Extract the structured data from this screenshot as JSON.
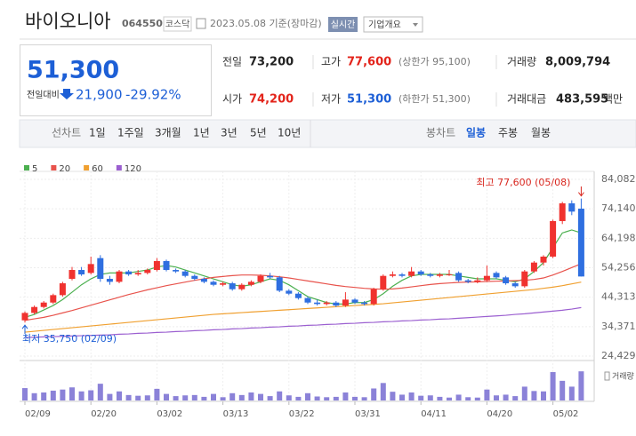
{
  "header": {
    "name": "바이오니아",
    "code": "064550",
    "market": "코스닥",
    "date": "2023.05.08 기준(장마감)",
    "realtime": "실시간",
    "overview": "기업개요"
  },
  "summary": {
    "price": "51,300",
    "change_label": "전일대비",
    "change": "21,900",
    "change_pct": "-29.92%"
  },
  "quotes": {
    "rows": [
      [
        {
          "label": "전일",
          "value": "73,200"
        },
        {
          "label": "고가",
          "value": "77,600",
          "note": "(상한가 95,100)"
        },
        {
          "label": "거래량",
          "value": "8,009,794"
        }
      ],
      [
        {
          "label": "시가",
          "value": "74,200"
        },
        {
          "label": "저가",
          "value": "51,300",
          "note": "(하한가 51,300)"
        },
        {
          "label": "거래대금",
          "value": "483,595",
          "unit": "백만"
        }
      ]
    ]
  },
  "toolbar": {
    "line_label": "선차트",
    "periods": [
      "1일",
      "1주일",
      "3개월",
      "1년",
      "3년",
      "5년",
      "10년"
    ],
    "candle_label": "봉차트",
    "candle_periods": [
      "일봉",
      "주봉",
      "월봉"
    ]
  },
  "chart_data": {
    "type": "candlestick",
    "categories": [
      "02/09",
      null,
      null,
      null,
      null,
      null,
      null,
      "02/20",
      null,
      null,
      null,
      null,
      null,
      null,
      "03/02",
      null,
      null,
      null,
      null,
      null,
      null,
      "03/13",
      null,
      null,
      null,
      null,
      null,
      null,
      "03/22",
      null,
      null,
      null,
      null,
      null,
      null,
      "03/31",
      null,
      null,
      null,
      null,
      null,
      null,
      "04/11",
      null,
      null,
      null,
      null,
      null,
      null,
      "04/20",
      null,
      null,
      null,
      null,
      null,
      null,
      "05/02",
      null,
      null,
      null
    ],
    "open": [
      36500,
      39000,
      41000,
      42500,
      45000,
      50500,
      53500,
      52500,
      57500,
      50500,
      49500,
      53000,
      52000,
      52500,
      53500,
      56500,
      53500,
      53000,
      51500,
      50500,
      49500,
      48500,
      49000,
      47000,
      48500,
      49500,
      51500,
      51000,
      46500,
      45500,
      44000,
      42500,
      42000,
      42500,
      41500,
      43500,
      42500,
      42000,
      47000,
      51500,
      52000,
      51500,
      53000,
      52000,
      51500,
      51800,
      52500,
      50000,
      49500,
      50000,
      52500,
      51000,
      49000,
      48000,
      53000,
      56000,
      58000,
      70000,
      76000,
      74200
    ],
    "high": [
      39500,
      41500,
      43000,
      45500,
      49500,
      54500,
      54500,
      58000,
      58500,
      51500,
      53500,
      53500,
      53500,
      54000,
      57500,
      57000,
      54000,
      53500,
      52000,
      51000,
      50000,
      49500,
      49500,
      49000,
      50000,
      52000,
      52500,
      51500,
      47000,
      46000,
      44500,
      43500,
      43000,
      43000,
      46000,
      44000,
      43000,
      47500,
      52000,
      53000,
      52500,
      54500,
      53500,
      52500,
      52500,
      53500,
      53000,
      50500,
      51000,
      55000,
      53000,
      51500,
      49500,
      53500,
      56500,
      58500,
      70500,
      76500,
      77000,
      77600
    ],
    "low": [
      35750,
      38500,
      40500,
      42000,
      44500,
      50000,
      51500,
      52000,
      49500,
      48500,
      49000,
      51500,
      51500,
      52000,
      53000,
      53000,
      52500,
      51000,
      50000,
      49000,
      48000,
      48000,
      46500,
      46500,
      48000,
      49000,
      50500,
      46000,
      45000,
      43500,
      42000,
      41500,
      41500,
      41000,
      41000,
      42000,
      41500,
      41500,
      46500,
      51000,
      51000,
      51000,
      51500,
      51000,
      51000,
      51500,
      49500,
      49000,
      49000,
      49500,
      50500,
      48500,
      47500,
      47500,
      52500,
      55000,
      57500,
      69000,
      72000,
      51300
    ],
    "close": [
      39000,
      41000,
      42500,
      45000,
      49000,
      53500,
      52000,
      55500,
      50500,
      49500,
      53000,
      52000,
      52500,
      53500,
      56500,
      53500,
      53000,
      51500,
      50500,
      49500,
      48500,
      49000,
      47000,
      48500,
      49500,
      51500,
      51000,
      46500,
      45500,
      44000,
      42500,
      42000,
      42500,
      41500,
      43500,
      42500,
      42000,
      47000,
      51500,
      52000,
      51500,
      53000,
      52000,
      51500,
      52000,
      52000,
      50000,
      49500,
      50000,
      51500,
      51000,
      49000,
      48000,
      53000,
      56000,
      58000,
      70000,
      76000,
      73200,
      51300
    ],
    "volume": [
      3400000,
      2000000,
      2200000,
      2700000,
      3000000,
      3600000,
      2500000,
      2800000,
      4600000,
      1800000,
      2500000,
      1500000,
      1300000,
      1400000,
      3200000,
      1800000,
      1200000,
      1400000,
      1500000,
      1000000,
      1800000,
      900000,
      2000000,
      1500000,
      2200000,
      1800000,
      1200000,
      2500000,
      1400000,
      1000000,
      2000000,
      1100000,
      900000,
      1000000,
      2200000,
      1000000,
      900000,
      3300000,
      4800000,
      2400000,
      1600000,
      2200000,
      1300000,
      1400000,
      1000000,
      800000,
      1600000,
      900000,
      800000,
      3000000,
      1400000,
      1600000,
      1200000,
      3800000,
      2600000,
      2500000,
      7800000,
      5400000,
      3800000,
      8009794
    ],
    "series": [
      {
        "name": "5",
        "color": "#4cb050",
        "values": [
          37500,
          38500,
          40000,
          41500,
          43500,
          46000,
          48500,
          50500,
          52000,
          52500,
          52500,
          52500,
          53000,
          53500,
          54500,
          55000,
          54500,
          53500,
          52500,
          51500,
          50500,
          49500,
          48500,
          48000,
          48500,
          49500,
          50500,
          50000,
          48500,
          46500,
          44500,
          43500,
          42500,
          42000,
          42000,
          42500,
          42500,
          43500,
          45500,
          48000,
          50000,
          51500,
          52000,
          52000,
          52000,
          52000,
          51500,
          51000,
          50500,
          50500,
          50500,
          50000,
          49500,
          50500,
          53000,
          56000,
          61000,
          66000,
          67000,
          66000
        ]
      },
      {
        "name": "20",
        "color": "#e8534c",
        "values": [
          36500,
          37000,
          37500,
          38200,
          39000,
          39800,
          40700,
          41600,
          42500,
          43400,
          44300,
          45200,
          46000,
          46800,
          47500,
          48200,
          48800,
          49400,
          50000,
          50500,
          51000,
          51300,
          51600,
          51800,
          51800,
          51700,
          51500,
          51200,
          50800,
          50300,
          49800,
          49300,
          48800,
          48300,
          47900,
          47600,
          47300,
          47100,
          47000,
          47100,
          47400,
          47800,
          48200,
          48600,
          48900,
          49100,
          49300,
          49400,
          49500,
          49600,
          49700,
          49800,
          49900,
          50000,
          50300,
          50800,
          51800,
          53000,
          54300,
          55600
        ]
      },
      {
        "name": "60",
        "color": "#f0a030",
        "values": [
          32500,
          32800,
          33100,
          33400,
          33700,
          34000,
          34300,
          34600,
          34900,
          35200,
          35500,
          35800,
          36100,
          36400,
          36700,
          37000,
          37300,
          37600,
          37900,
          38200,
          38500,
          38700,
          38900,
          39100,
          39300,
          39500,
          39700,
          39900,
          40100,
          40300,
          40500,
          40700,
          40900,
          41100,
          41300,
          41500,
          41700,
          41900,
          42100,
          42400,
          42700,
          43000,
          43300,
          43600,
          43900,
          44200,
          44500,
          44800,
          45100,
          45400,
          45700,
          46000,
          46300,
          46600,
          46900,
          47300,
          47700,
          48200,
          48800,
          49400
        ]
      },
      {
        "name": "120",
        "color": "#9b5fd0",
        "values": [
          30700,
          30800,
          30900,
          31000,
          31100,
          31200,
          31300,
          31400,
          31500,
          31600,
          31800,
          31900,
          32100,
          32200,
          32400,
          32500,
          32700,
          32800,
          33000,
          33100,
          33300,
          33400,
          33600,
          33700,
          33900,
          34000,
          34200,
          34300,
          34500,
          34600,
          34800,
          34900,
          35100,
          35200,
          35400,
          35500,
          35700,
          35800,
          36000,
          36100,
          36300,
          36400,
          36600,
          36700,
          36900,
          37000,
          37200,
          37400,
          37600,
          37800,
          38000,
          38200,
          38500,
          38700,
          39000,
          39300,
          39600,
          39900,
          40300,
          40800
        ]
      }
    ],
    "up_color": "#f0322f",
    "down_color": "#2f6fe0",
    "volume_color": "#8b82d8",
    "ylim": [
      22330,
      86180
    ],
    "yticks": [
      {
        "value": 84082,
        "label": "84,082"
      },
      {
        "value": 74140,
        "label": "74,140"
      },
      {
        "value": 64198,
        "label": "64,198"
      },
      {
        "value": 54256,
        "label": "54,256"
      },
      {
        "value": 44313,
        "label": "44,313"
      },
      {
        "value": 34371,
        "label": "34,371"
      },
      {
        "value": 24429,
        "label": "24,429"
      }
    ],
    "volume_ylim": [
      0,
      10000000
    ],
    "volume_label": "거래량",
    "grid": true,
    "high_label": "최고 77,600 (05/08)",
    "low_label": "최저 35,750 (02/09)"
  }
}
